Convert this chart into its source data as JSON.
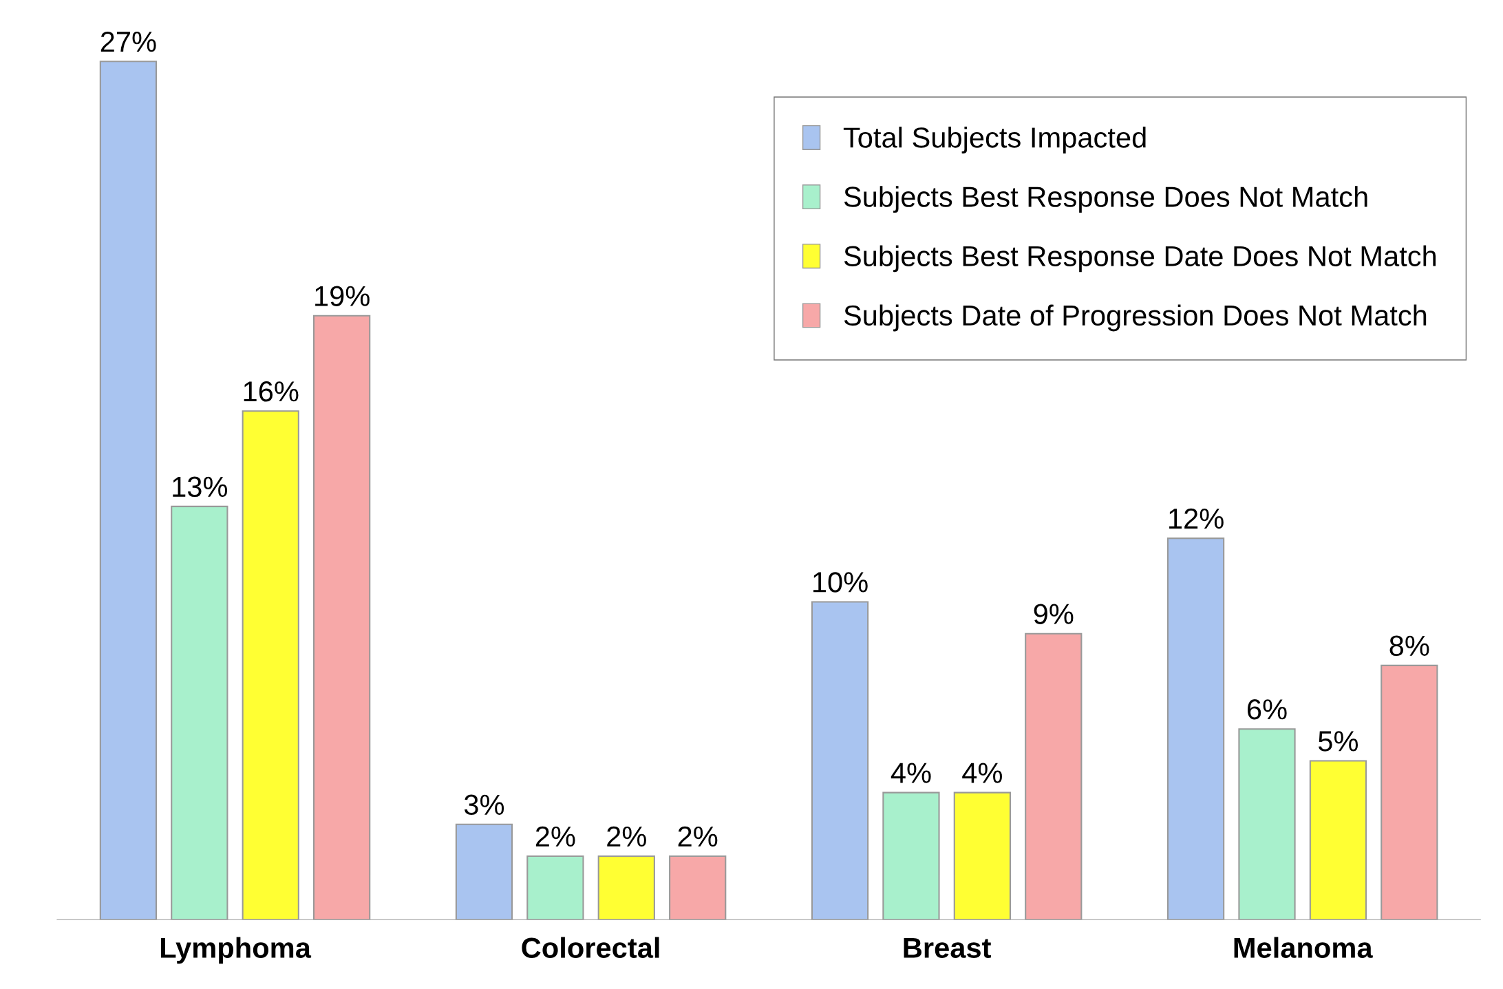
{
  "chart_data": {
    "type": "bar",
    "categories": [
      "Lymphoma",
      "Colorectal",
      "Breast",
      "Melanoma"
    ],
    "series": [
      {
        "name": "Total Subjects Impacted",
        "color": "#a9c4f0",
        "values": [
          27,
          3,
          10,
          12
        ],
        "value_labels": [
          "27%",
          "3%",
          "10%",
          "12%"
        ]
      },
      {
        "name": "Subjects Best Response Does Not Match",
        "color": "#a8f0cc",
        "values": [
          13,
          2,
          4,
          6
        ],
        "value_labels": [
          "13%",
          "2%",
          "4%",
          "6%"
        ]
      },
      {
        "name": "Subjects Best Response Date Does Not Match",
        "color": "#ffff33",
        "values": [
          16,
          2,
          4,
          5
        ],
        "value_labels": [
          "16%",
          "2%",
          "4%",
          "5%"
        ]
      },
      {
        "name": "Subjects Date of Progression Does Not Match",
        "color": "#f7a8a8",
        "values": [
          19,
          2,
          9,
          8
        ],
        "value_labels": [
          "19%",
          "2%",
          "9%",
          "8%"
        ]
      }
    ],
    "legend": "top right",
    "grid": false
  }
}
